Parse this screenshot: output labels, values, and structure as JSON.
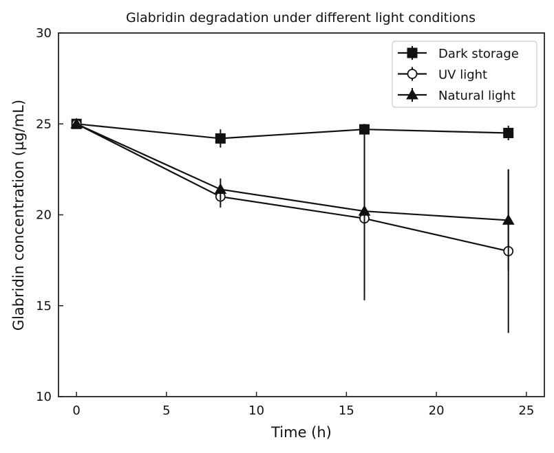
{
  "chart_data": {
    "type": "line",
    "title": "Glabridin degradation under different light conditions",
    "xlabel": "Time (h)",
    "ylabel": "Glabridin concentration (µg/mL)",
    "xlim": [
      -1,
      26
    ],
    "ylim": [
      10,
      30
    ],
    "xticks": [
      0,
      5,
      10,
      15,
      20,
      25
    ],
    "yticks": [
      10,
      15,
      20,
      25,
      30
    ],
    "x": [
      0,
      8,
      16,
      24
    ],
    "legend_position": "top-right",
    "grid": false,
    "series": [
      {
        "name": "Dark storage",
        "marker": "square",
        "color": "#111111",
        "values": [
          25.0,
          24.2,
          24.7,
          24.5
        ],
        "errors": [
          0.1,
          0.5,
          0.3,
          0.4
        ]
      },
      {
        "name": "UV light",
        "marker": "circle-open",
        "color": "#111111",
        "values": [
          25.0,
          21.0,
          19.8,
          18.0
        ],
        "errors": [
          0.1,
          0.6,
          4.5,
          4.5
        ]
      },
      {
        "name": "Natural light",
        "marker": "triangle",
        "color": "#111111",
        "values": [
          25.0,
          21.4,
          20.2,
          19.7
        ],
        "errors": [
          0.1,
          0.6,
          4.5,
          2.8
        ]
      }
    ]
  }
}
